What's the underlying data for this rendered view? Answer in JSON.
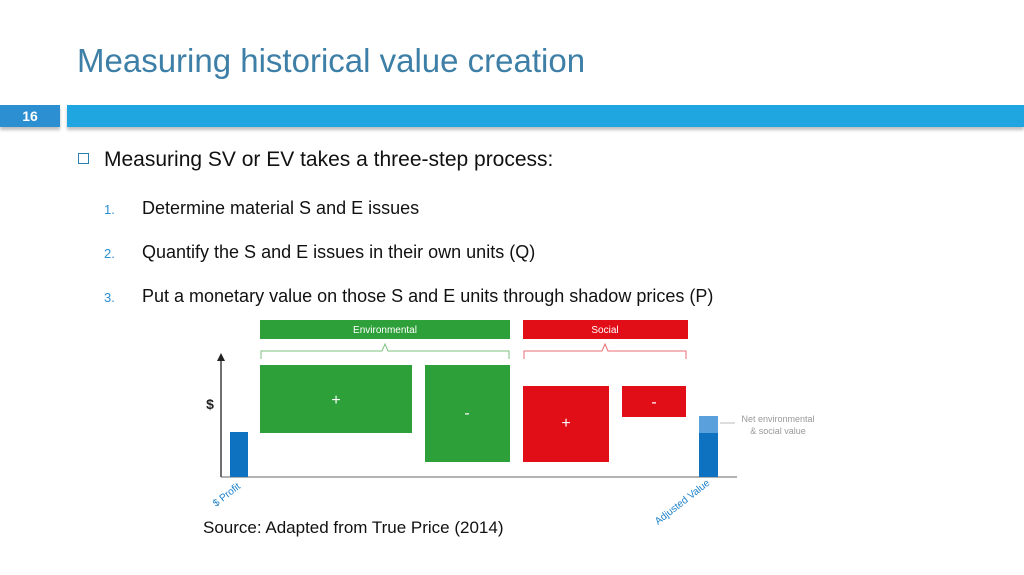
{
  "slide": {
    "title": "Measuring historical value creation",
    "number": "16"
  },
  "content": {
    "main_bullet": "Measuring SV or EV takes a three-step process:",
    "steps": [
      {
        "num": "1.",
        "text": "Determine material S and E issues"
      },
      {
        "num": "2.",
        "text": "Quantify the S and E issues in their own units (Q)"
      },
      {
        "num": "3.",
        "text": "Put a monetary value on those S and E units through shadow prices (P)"
      }
    ]
  },
  "chart_data": {
    "type": "bar",
    "ylabel": "$",
    "groups": [
      {
        "name": "Environmental",
        "color": "#2ea03a"
      },
      {
        "name": "Social",
        "color": "#e20e17"
      }
    ],
    "bars": [
      {
        "label": "$ Profit",
        "sign": "",
        "value": 45,
        "color": "#0f72c0"
      },
      {
        "label": "",
        "sign": "+",
        "value": 68,
        "color": "#2ea03a"
      },
      {
        "label": "",
        "sign": "-",
        "value": 97,
        "color": "#2ea03a"
      },
      {
        "label": "",
        "sign": "+",
        "value": 76,
        "color": "#e20e17"
      },
      {
        "label": "",
        "sign": "-",
        "value": 31,
        "color": "#e20e17"
      },
      {
        "label": "Adjusted Value",
        "sign": "",
        "value": 61,
        "color": "#0f72c0"
      }
    ],
    "adjusted_highlight": 17,
    "annotation": [
      "Net environmental",
      "& social value"
    ]
  },
  "source": "Source: Adapted from True Price (2014)"
}
